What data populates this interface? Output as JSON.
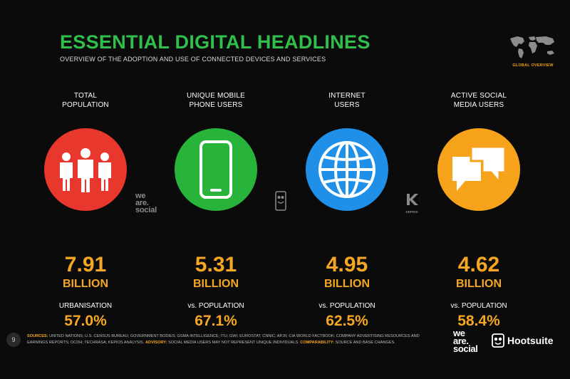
{
  "header": {
    "title": "ESSENTIAL DIGITAL HEADLINES",
    "subtitle": "OVERVIEW OF THE ADOPTION AND USE OF CONNECTED DEVICES AND SERVICES",
    "badge": "GLOBAL OVERVIEW"
  },
  "stats": [
    {
      "label_line1": "TOTAL",
      "label_line2": "POPULATION",
      "value": "7.91",
      "unit": "BILLION",
      "sublabel": "URBANISATION",
      "subvalue": "57.0%",
      "color": "#e8372c",
      "icon": "people-icon"
    },
    {
      "label_line1": "UNIQUE MOBILE",
      "label_line2": "PHONE USERS",
      "value": "5.31",
      "unit": "BILLION",
      "sublabel": "vs. POPULATION",
      "subvalue": "67.1%",
      "color": "#28b33a",
      "icon": "mobile-phone-icon"
    },
    {
      "label_line1": "INTERNET",
      "label_line2": "USERS",
      "value": "4.95",
      "unit": "BILLION",
      "sublabel": "vs. POPULATION",
      "subvalue": "62.5%",
      "color": "#1f8fe8",
      "icon": "globe-icon"
    },
    {
      "label_line1": "ACTIVE SOCIAL",
      "label_line2": "MEDIA USERS",
      "value": "4.62",
      "unit": "BILLION",
      "sublabel": "vs. POPULATION",
      "subvalue": "58.4%",
      "color": "#f7a21b",
      "icon": "chat-bubbles-icon"
    }
  ],
  "source_marks": {
    "was_line1": "we",
    "was_line2": "are.",
    "was_line3": "social",
    "kepios": "KEPIOS"
  },
  "footer": {
    "page_number": "9",
    "sources_key": "SOURCES:",
    "sources_text": "UNITED NATIONS; U.S. CENSUS BUREAU; GOVERNMENT BODIES; GSMA INTELLIGENCE; ITU; GWI; EUROSTAT; CNNIC; APJII; CIA WORLD FACTBOOK; COMPANY ADVERTISING RESOURCES AND EARNINGS REPORTS; OCDH; TECHRASA; KEPIOS ANALYSIS.",
    "advisory_key": "ADVISORY:",
    "advisory_text": "SOCIAL MEDIA USERS MAY NOT REPRESENT UNIQUE INDIVIDUALS.",
    "comparability_key": "COMPARABILITY:",
    "comparability_text": "SOURCE AND BASE CHANGES.",
    "brand_was_1": "we",
    "brand_was_2": "are.",
    "brand_was_3": "social",
    "brand_hootsuite": "Hootsuite"
  }
}
